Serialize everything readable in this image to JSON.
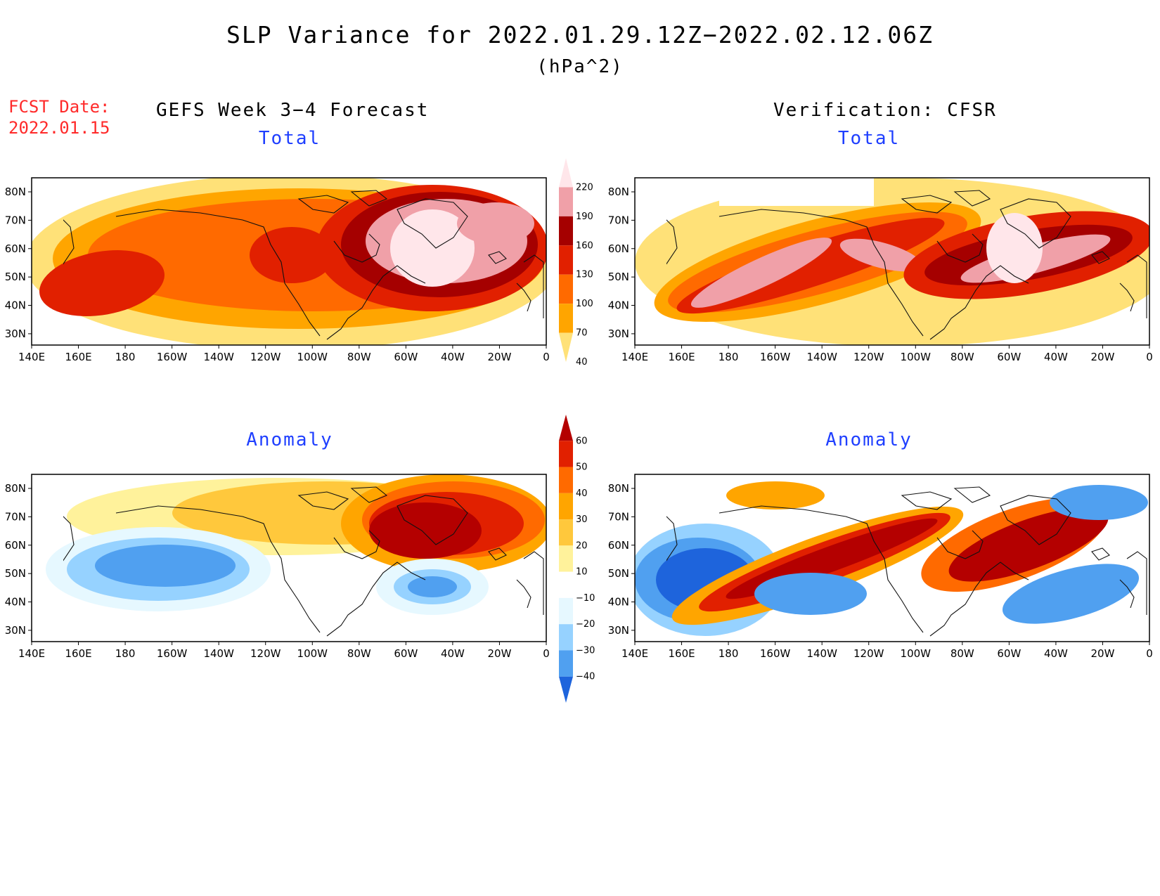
{
  "title": "SLP Variance for 2022.01.29.12Z−2022.02.12.06Z",
  "units": "(hPa^2)",
  "fcst_date_label": "FCST Date:",
  "fcst_date_value": "2022.01.15",
  "left_column_title": "GEFS Week 3−4 Forecast",
  "right_column_title": "Verification: CFSR",
  "panels": [
    {
      "id": "gefs-total",
      "subtitle": "Total"
    },
    {
      "id": "cfsr-total",
      "subtitle": "Total"
    },
    {
      "id": "gefs-anomaly",
      "subtitle": "Anomaly"
    },
    {
      "id": "cfsr-anomaly",
      "subtitle": "Anomaly"
    }
  ],
  "lon_labels": [
    "140E",
    "160E",
    "180",
    "160W",
    "140W",
    "120W",
    "100W",
    "80W",
    "60W",
    "40W",
    "20W",
    "0"
  ],
  "lat_labels": [
    "80N",
    "70N",
    "60N",
    "50N",
    "40N",
    "30N"
  ],
  "total_colorbar": {
    "levels": [
      "40",
      "70",
      "100",
      "130",
      "160",
      "190",
      "220"
    ],
    "colors": [
      "#ffe178",
      "#ffa500",
      "#ff6a00",
      "#e12000",
      "#a50000",
      "#f0a0a8",
      "#ffe6ea"
    ]
  },
  "anomaly_colorbar": {
    "levels": [
      "60",
      "50",
      "40",
      "30",
      "20",
      "10",
      "−10",
      "−20",
      "−30",
      "−40"
    ],
    "colors": [
      "#b40000",
      "#e12000",
      "#ff6a00",
      "#ffa500",
      "#ffc83c",
      "#fff29b",
      "#ffffff",
      "#e6f8ff",
      "#96d2ff",
      "#50a0f0",
      "#1e64dc"
    ]
  }
}
